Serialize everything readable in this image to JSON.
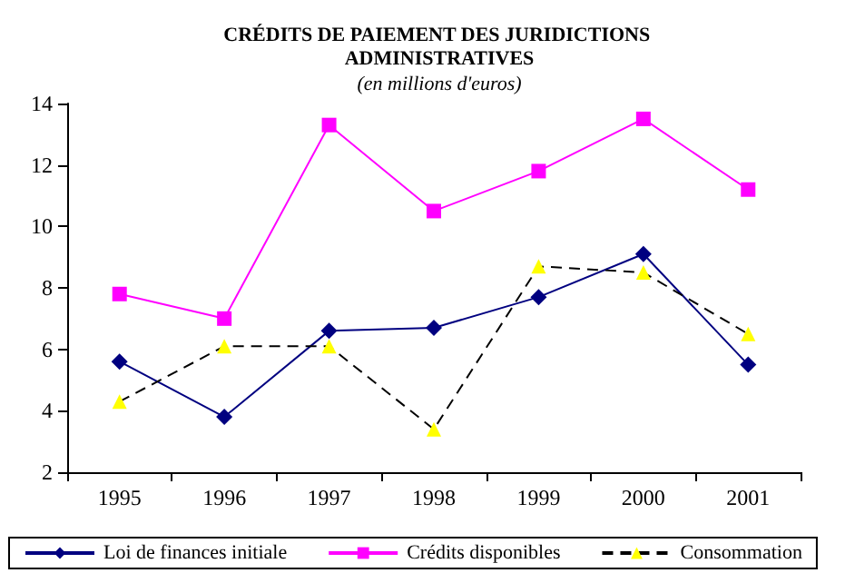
{
  "chart_data": {
    "type": "line",
    "title": "CRÉDITS DE PAIEMENT DES JURIDICTIONS ADMINISTRATIVES",
    "subtitle": "(en millions d'euros)",
    "categories": [
      "1995",
      "1996",
      "1997",
      "1998",
      "1999",
      "2000",
      "2001"
    ],
    "series": [
      {
        "name": "Loi de finances initiale",
        "color": "#000080",
        "marker": "diamond",
        "line_style": "solid",
        "values": [
          5.6,
          3.8,
          6.6,
          6.7,
          7.7,
          9.1,
          5.5
        ]
      },
      {
        "name": "Crédits disponibles",
        "color": "#ff00ff",
        "marker": "square",
        "line_style": "solid",
        "values": [
          7.8,
          7.0,
          13.3,
          10.5,
          11.8,
          13.5,
          11.2
        ]
      },
      {
        "name": "Consommation",
        "color": "#ffff00",
        "marker": "triangle",
        "line_style": "dashed",
        "values": [
          4.3,
          6.1,
          6.1,
          3.4,
          8.7,
          8.5,
          6.5
        ]
      }
    ],
    "ylim": [
      2,
      14
    ],
    "yticks": [
      2,
      4,
      6,
      8,
      10,
      12,
      14
    ],
    "grid": false,
    "legend": "bottom"
  }
}
